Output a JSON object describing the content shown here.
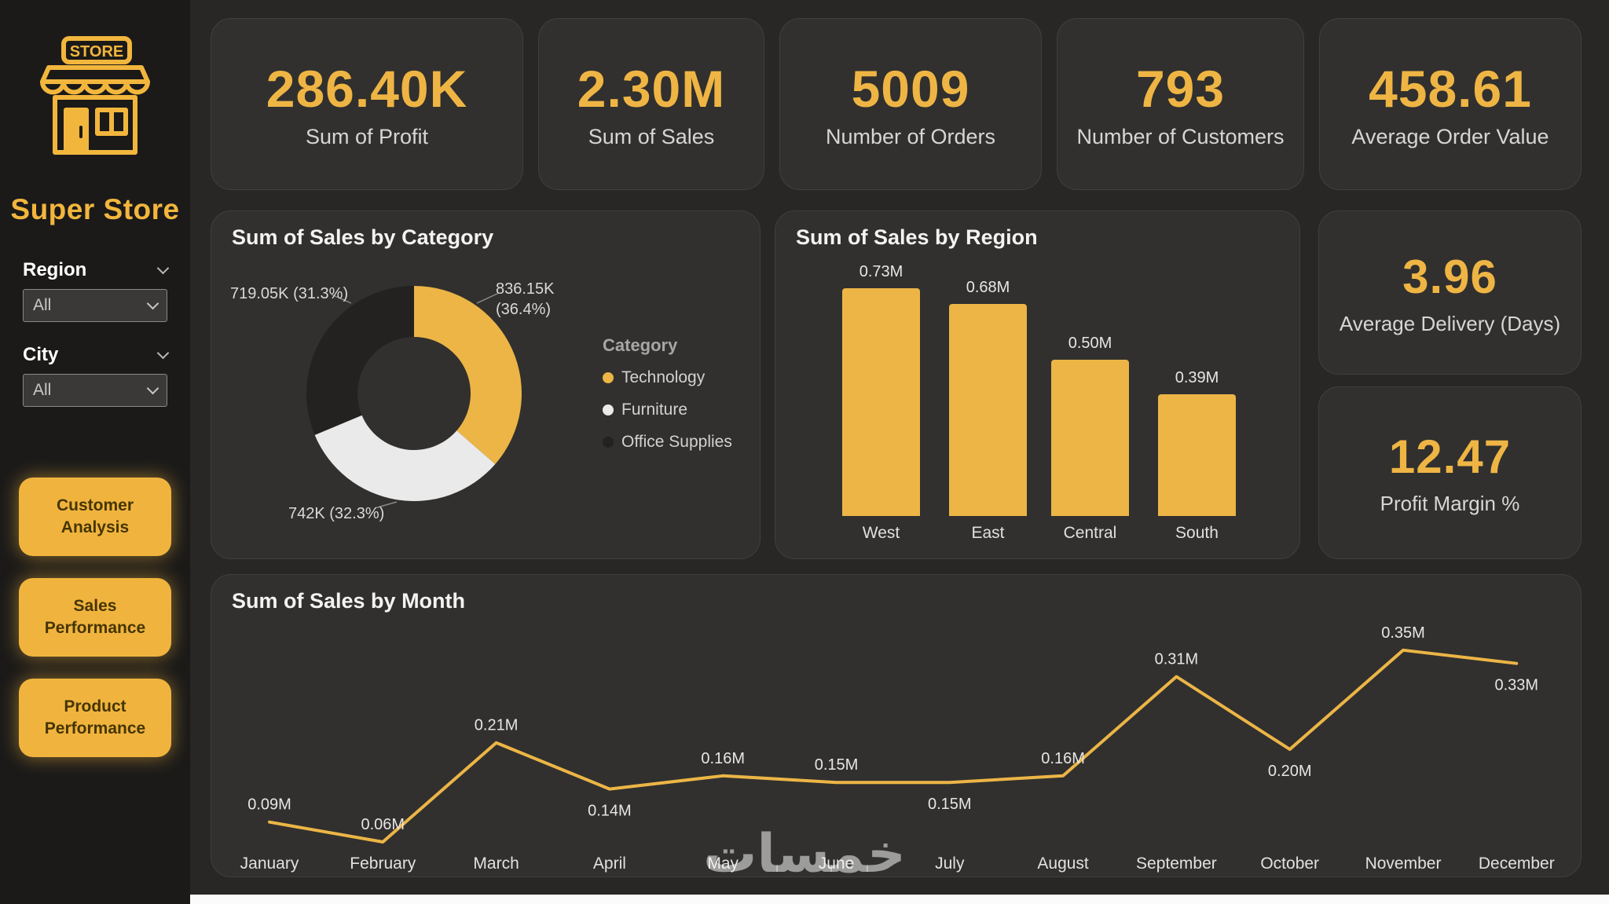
{
  "colors": {
    "accent": "#EFB544",
    "bar_fill": "#ECB546",
    "line": "#ECB546",
    "donut_technology": "#ECB546",
    "donut_furniture": "#EAEAEA",
    "donut_office_supplies": "#242220"
  },
  "sidebar": {
    "logo_sign": "STORE",
    "title": "Super Store",
    "filters": [
      {
        "label": "Region",
        "value": "All"
      },
      {
        "label": "City",
        "value": "All"
      }
    ],
    "buttons": [
      "Customer Analysis",
      "Sales Performance",
      "Product Performance"
    ]
  },
  "kpi_cards": [
    {
      "value": "286.40K",
      "label": "Sum of Profit"
    },
    {
      "value": "2.30M",
      "label": "Sum of Sales"
    },
    {
      "value": "5009",
      "label": "Number of Orders"
    },
    {
      "value": "793",
      "label": "Number of Customers"
    },
    {
      "value": "458.61",
      "label": "Average Order Value"
    }
  ],
  "stat_cards": [
    {
      "value": "3.96",
      "label": "Average Delivery (Days)"
    },
    {
      "value": "12.47",
      "label": "Profit Margin %"
    }
  ],
  "watermark": "خمسات",
  "chart_data": [
    {
      "type": "pie",
      "title": "Sum of Sales by Category",
      "legend_title": "Category",
      "legend_position": "right",
      "slices": [
        {
          "name": "Technology",
          "value_label": "836.15K (36.4%)",
          "pct": 36.4,
          "color": "#ECB546"
        },
        {
          "name": "Furniture",
          "value_label": "742K (32.3%)",
          "pct": 32.3,
          "color": "#EAEAEA"
        },
        {
          "name": "Office Supplies",
          "value_label": "719.05K (31.3%)",
          "pct": 31.3,
          "color": "#242220"
        }
      ]
    },
    {
      "type": "bar",
      "title": "Sum of Sales by Region",
      "categories": [
        "West",
        "East",
        "Central",
        "South"
      ],
      "values": [
        0.73,
        0.68,
        0.5,
        0.39
      ],
      "value_labels": [
        "0.73M",
        "0.68M",
        "0.50M",
        "0.39M"
      ],
      "ylim": [
        0,
        0.73
      ],
      "grid": false
    },
    {
      "type": "line",
      "title": "Sum of Sales by Month",
      "categories": [
        "January",
        "February",
        "March",
        "April",
        "May",
        "June",
        "July",
        "August",
        "September",
        "October",
        "November",
        "December"
      ],
      "values": [
        0.09,
        0.06,
        0.21,
        0.14,
        0.16,
        0.15,
        0.15,
        0.16,
        0.31,
        0.2,
        0.35,
        0.33
      ],
      "value_labels": [
        "0.09M",
        "0.06M",
        "0.21M",
        "0.14M",
        "0.16M",
        "0.15M",
        "0.15M",
        "0.16M",
        "0.31M",
        "0.20M",
        "0.35M",
        "0.33M"
      ],
      "label_side": [
        "above",
        "above",
        "above",
        "below",
        "above",
        "above",
        "below",
        "above",
        "above",
        "below",
        "above",
        "below"
      ],
      "ylim": [
        0,
        0.4
      ],
      "grid": false
    }
  ]
}
